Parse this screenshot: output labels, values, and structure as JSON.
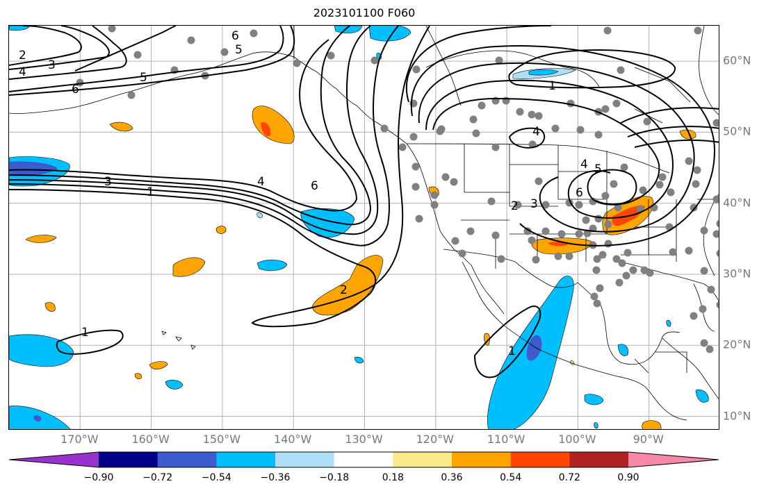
{
  "title": "2023101100 F060",
  "map": {
    "lon_range": [
      -180,
      -80
    ],
    "lat_range": [
      8,
      65
    ],
    "lon_ticks": [
      {
        "value": -170,
        "label": "170°W"
      },
      {
        "value": -160,
        "label": "160°W"
      },
      {
        "value": -150,
        "label": "150°W"
      },
      {
        "value": -140,
        "label": "140°W"
      },
      {
        "value": -130,
        "label": "130°W"
      },
      {
        "value": -120,
        "label": "120°W"
      },
      {
        "value": -110,
        "label": "110°W"
      },
      {
        "value": -100,
        "label": "100°W"
      },
      {
        "value": -90,
        "label": "90°W"
      }
    ],
    "lat_ticks": [
      {
        "value": 10,
        "label": "10°N"
      },
      {
        "value": 20,
        "label": "20°N"
      },
      {
        "value": 30,
        "label": "30°N"
      },
      {
        "value": 40,
        "label": "40°N"
      },
      {
        "value": 50,
        "label": "50°N"
      },
      {
        "value": 60,
        "label": "60°N"
      }
    ],
    "grid": true,
    "tick_label_color": "#777777",
    "contour_labels": [
      "2",
      "3",
      "4",
      "5",
      "6",
      "6",
      "5",
      "3",
      "1",
      "4",
      "6",
      "2",
      "1",
      "1",
      "1",
      "4",
      "4",
      "5",
      "6",
      "2",
      "3"
    ],
    "station_color": "#808080"
  },
  "colorbar": {
    "colors": [
      "#9932cc",
      "#00008b",
      "#3b5bcf",
      "#00bfff",
      "#ade0f7",
      "#ffffff",
      "#fbe78c",
      "#ffa500",
      "#ff4500",
      "#b22222",
      "#f788a8"
    ],
    "tick_labels": [
      "−0.90",
      "−0.72",
      "−0.54",
      "−0.36",
      "−0.18",
      "0.18",
      "0.36",
      "0.54",
      "0.72",
      "0.90"
    ],
    "extend": "both"
  }
}
